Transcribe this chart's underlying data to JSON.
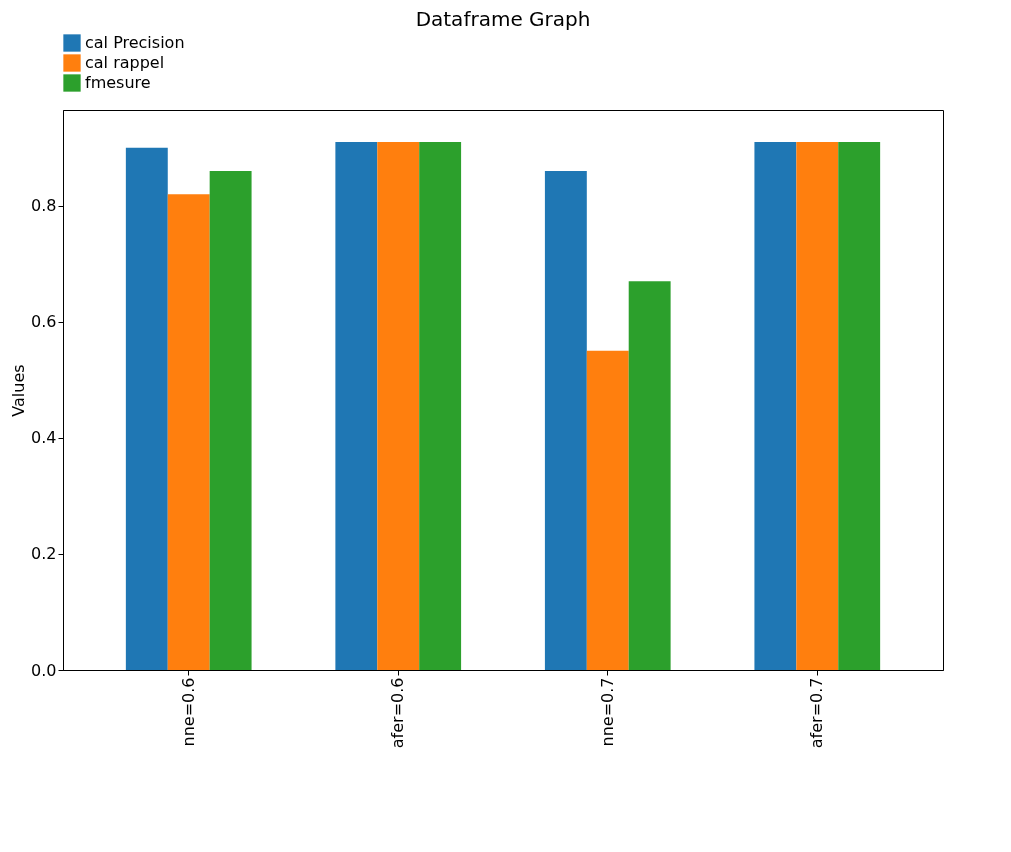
{
  "chart_data": {
    "type": "bar",
    "title": "Dataframe Graph",
    "ylabel": "Values",
    "categories": [
      "nne=0.6",
      "afer=0.6",
      "nne=0.7",
      "afer=0.7"
    ],
    "series": [
      {
        "name": "cal Precision",
        "color": "#1f77b4",
        "values": [
          0.9,
          0.91,
          0.86,
          0.91
        ]
      },
      {
        "name": "cal rappel",
        "color": "#ff7f0e",
        "values": [
          0.82,
          0.91,
          0.55,
          0.91
        ]
      },
      {
        "name": "fmesure",
        "color": "#2ca02c",
        "values": [
          0.86,
          0.91,
          0.67,
          0.91
        ]
      }
    ],
    "ylim": [
      0,
      0.965
    ],
    "yticks": [
      {
        "value": 0,
        "label": "0.0"
      },
      0.2,
      0.4,
      0.6,
      0.8
    ],
    "legend": "top left"
  }
}
